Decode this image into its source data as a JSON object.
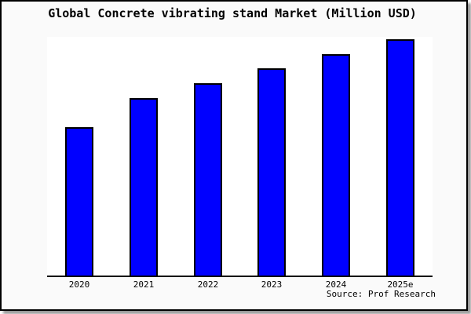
{
  "title": "Global Concrete vibrating stand Market (Million USD)",
  "source": "Source: Prof Research",
  "colors": {
    "bar_fill": "#0000ff",
    "bar_border": "#000000",
    "background": "#fafafa",
    "plot_background": "#ffffff",
    "axis": "#000000",
    "frame_border": "#000000"
  },
  "chart_data": {
    "type": "bar",
    "title": "Global Concrete vibrating stand Market (Million USD)",
    "categories": [
      "2020",
      "2021",
      "2022",
      "2023",
      "2024",
      "2025e"
    ],
    "values": [
      62.8,
      75.1,
      81.4,
      87.7,
      93.8,
      100
    ],
    "xlabel": "",
    "ylabel": "",
    "ylim": [
      0,
      101
    ],
    "grid": false,
    "legend": false,
    "y_axis_ticks_shown": false,
    "annotation": "Source: Prof Research"
  }
}
